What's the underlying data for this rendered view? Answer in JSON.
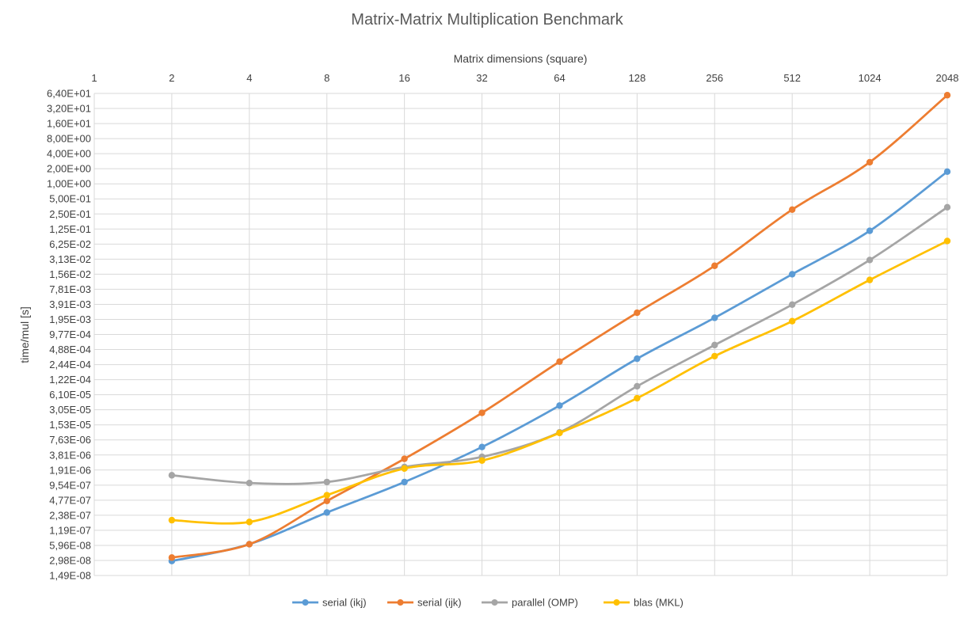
{
  "chart_data": {
    "type": "line",
    "title": "Matrix-Matrix Multiplication Benchmark",
    "xlabel": "Matrix dimensions (square)",
    "ylabel": "time/mul [s]",
    "x_scale": "log2",
    "y_scale": "log2",
    "x_ticks": [
      "1",
      "2",
      "4",
      "8",
      "16",
      "32",
      "64",
      "128",
      "256",
      "512",
      "1024",
      "2048"
    ],
    "y_ticks": [
      "1,49E-08",
      "2,98E-08",
      "5,96E-08",
      "1,19E-07",
      "2,38E-07",
      "4,77E-07",
      "9,54E-07",
      "1,91E-06",
      "3,81E-06",
      "7,63E-06",
      "1,53E-05",
      "3,05E-05",
      "6,10E-05",
      "1,22E-04",
      "2,44E-04",
      "4,88E-04",
      "9,77E-04",
      "1,95E-03",
      "3,91E-03",
      "7,81E-03",
      "1,56E-02",
      "3,13E-02",
      "6,25E-02",
      "1,25E-01",
      "2,50E-01",
      "5,00E-01",
      "1,00E+00",
      "2,00E+00",
      "4,00E+00",
      "8,00E+00",
      "1,60E+01",
      "3,20E+01",
      "6,40E+01"
    ],
    "ylim": [
      1.49e-08,
      64
    ],
    "grid": true,
    "legend_position": "bottom",
    "x": [
      2,
      4,
      8,
      16,
      32,
      64,
      128,
      256,
      512,
      1024,
      2048
    ],
    "series": [
      {
        "name": "serial (ikj)",
        "color": "#5b9bd5",
        "values": [
          2.9e-08,
          6.3e-08,
          2.7e-07,
          1.1e-06,
          5.5e-06,
          3.7e-05,
          0.00032,
          0.0021,
          0.0156,
          0.115,
          1.75
        ]
      },
      {
        "name": "serial (ijk)",
        "color": "#ed7d31",
        "values": [
          3.4e-08,
          6.3e-08,
          4.6e-07,
          3.2e-06,
          2.65e-05,
          0.00028,
          0.00265,
          0.023,
          0.305,
          2.7,
          59
        ]
      },
      {
        "name": "parallel (OMP)",
        "color": "#a5a5a5",
        "values": [
          1.5e-06,
          1.05e-06,
          1.1e-06,
          2.2e-06,
          3.5e-06,
          1.08e-05,
          9e-05,
          0.0006,
          0.00385,
          0.03,
          0.34
        ]
      },
      {
        "name": "blas (MKL)",
        "color": "#ffc000",
        "values": [
          1.9e-07,
          1.75e-07,
          6e-07,
          2.05e-06,
          2.95e-06,
          1.05e-05,
          5.2e-05,
          0.00036,
          0.0018,
          0.012,
          0.072
        ]
      }
    ]
  }
}
